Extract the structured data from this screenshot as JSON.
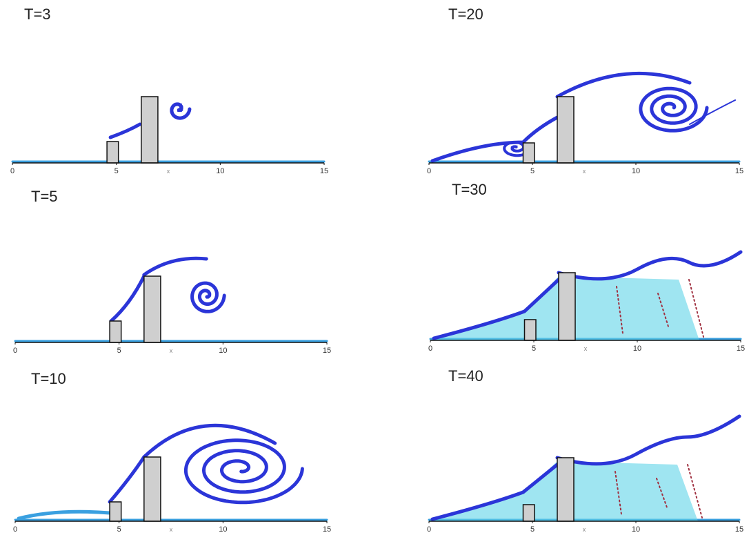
{
  "panels": [
    {
      "title": "T=3",
      "xticks": [
        0,
        5,
        10,
        15
      ],
      "x_label": "x"
    },
    {
      "title": "T=20",
      "xticks": [
        0,
        5,
        10,
        15
      ],
      "x_label": "x"
    },
    {
      "title": "T=5",
      "xticks": [
        0,
        5,
        10,
        15
      ],
      "x_label": "x"
    },
    {
      "title": "T=30",
      "xticks": [
        0,
        5,
        10,
        15
      ],
      "x_label": "x"
    },
    {
      "title": "T=10",
      "xticks": [
        0,
        5,
        10,
        15
      ],
      "x_label": "x"
    },
    {
      "title": "T=40",
      "xticks": [
        0,
        5,
        10,
        15
      ],
      "x_label": "x"
    }
  ]
}
